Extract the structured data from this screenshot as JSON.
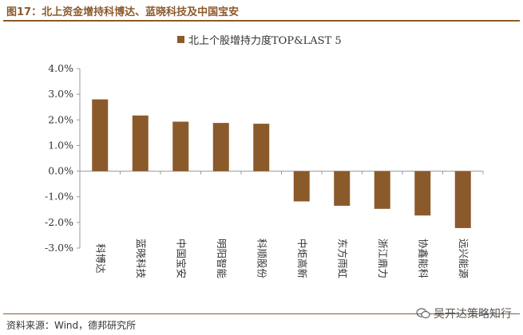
{
  "figure": {
    "title": "图17：北上资金增持科博达、蓝晓科技及中国宝安",
    "source": "资料来源：Wind，德邦研究所",
    "watermark": "吴开达策略知行"
  },
  "colors": {
    "bar": "#8B5A2B",
    "accent": "#8B5A2B"
  },
  "chart_data": {
    "type": "bar",
    "title": "",
    "xlabel": "",
    "ylabel": "",
    "legend": {
      "position": "top-center"
    },
    "grid": false,
    "ylim": [
      -0.03,
      0.04
    ],
    "yticks": [
      "4.0%",
      "3.0%",
      "2.0%",
      "1.0%",
      "0.0%",
      "-1.0%",
      "-2.0%",
      "-3.0%"
    ],
    "ytick_values": [
      0.04,
      0.03,
      0.02,
      0.01,
      0.0,
      -0.01,
      -0.02,
      -0.03
    ],
    "categories": [
      "科博达",
      "蓝晓科技",
      "中国宝安",
      "明阳智能",
      "科顺股份",
      "中炬高新",
      "东方雨虹",
      "浙江鼎力",
      "协鑫能科",
      "远兴能源"
    ],
    "series": [
      {
        "name": "北上个股增持力度TOP&LAST 5",
        "values": [
          0.028,
          0.0217,
          0.0193,
          0.0188,
          0.0185,
          -0.0118,
          -0.0135,
          -0.0147,
          -0.0173,
          -0.0222
        ]
      }
    ]
  }
}
